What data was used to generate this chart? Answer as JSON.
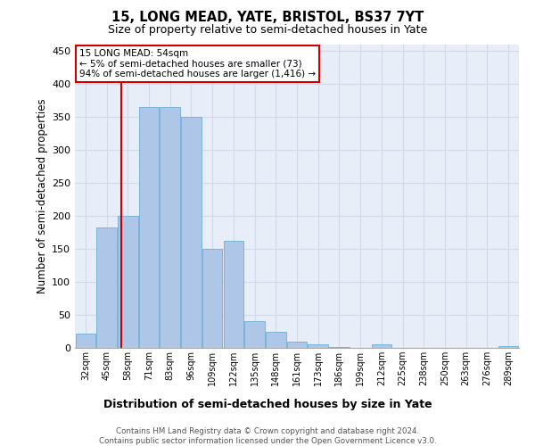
{
  "title1": "15, LONG MEAD, YATE, BRISTOL, BS37 7YT",
  "title2": "Size of property relative to semi-detached houses in Yate",
  "xlabel": "Distribution of semi-detached houses by size in Yate",
  "ylabel": "Number of semi-detached properties",
  "categories": [
    "32sqm",
    "45sqm",
    "58sqm",
    "71sqm",
    "83sqm",
    "96sqm",
    "109sqm",
    "122sqm",
    "135sqm",
    "148sqm",
    "161sqm",
    "173sqm",
    "186sqm",
    "199sqm",
    "212sqm",
    "225sqm",
    "238sqm",
    "250sqm",
    "263sqm",
    "276sqm",
    "289sqm"
  ],
  "values": [
    22,
    183,
    200,
    365,
    365,
    350,
    150,
    163,
    40,
    25,
    10,
    5,
    2,
    0,
    5,
    0,
    0,
    0,
    0,
    0,
    3
  ],
  "bar_color": "#aec6e8",
  "bar_edge_color": "#6baed6",
  "grid_color": "#d0dae8",
  "background_color": "#e8eef8",
  "annotation_box_color": "#ffffff",
  "annotation_border_color": "#cc0000",
  "vline_color": "#cc0000",
  "annotation_text1": "15 LONG MEAD: 54sqm",
  "annotation_text2": "← 5% of semi-detached houses are smaller (73)",
  "annotation_text3": "94% of semi-detached houses are larger (1,416) →",
  "footer1": "Contains HM Land Registry data © Crown copyright and database right 2024.",
  "footer2": "Contains public sector information licensed under the Open Government Licence v3.0.",
  "ylim": [
    0,
    460
  ],
  "yticks": [
    0,
    50,
    100,
    150,
    200,
    250,
    300,
    350,
    400,
    450
  ]
}
